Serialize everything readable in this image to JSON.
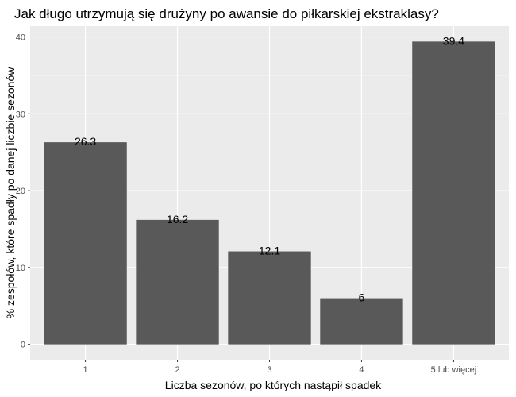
{
  "chart_data": {
    "type": "bar",
    "title": "Jak długo utrzymują się drużyny po awansie do piłkarskiej ekstraklasy?",
    "xlabel": "Liczba sezonów, po których nastąpił spadek",
    "ylabel": "% zespołów, które spadły po danej liczbie sezonów",
    "categories": [
      "1",
      "2",
      "3",
      "4",
      "5 lub więcej"
    ],
    "values": [
      26.3,
      16.2,
      12.1,
      6,
      39.4
    ],
    "data_labels": [
      "26.3",
      "16.2",
      "12.1",
      "6",
      "39.4"
    ],
    "yticks": [
      0,
      10,
      20,
      30,
      40
    ],
    "ytick_labels": [
      "0",
      "10",
      "20",
      "30",
      "40"
    ],
    "ylim": [
      -2.0,
      41.4
    ],
    "grid": true,
    "colors": {
      "bar": "#595959",
      "panel": "#ebebeb",
      "grid": "#ffffff",
      "tick_text": "#4d4d4d",
      "text": "#000000"
    }
  }
}
